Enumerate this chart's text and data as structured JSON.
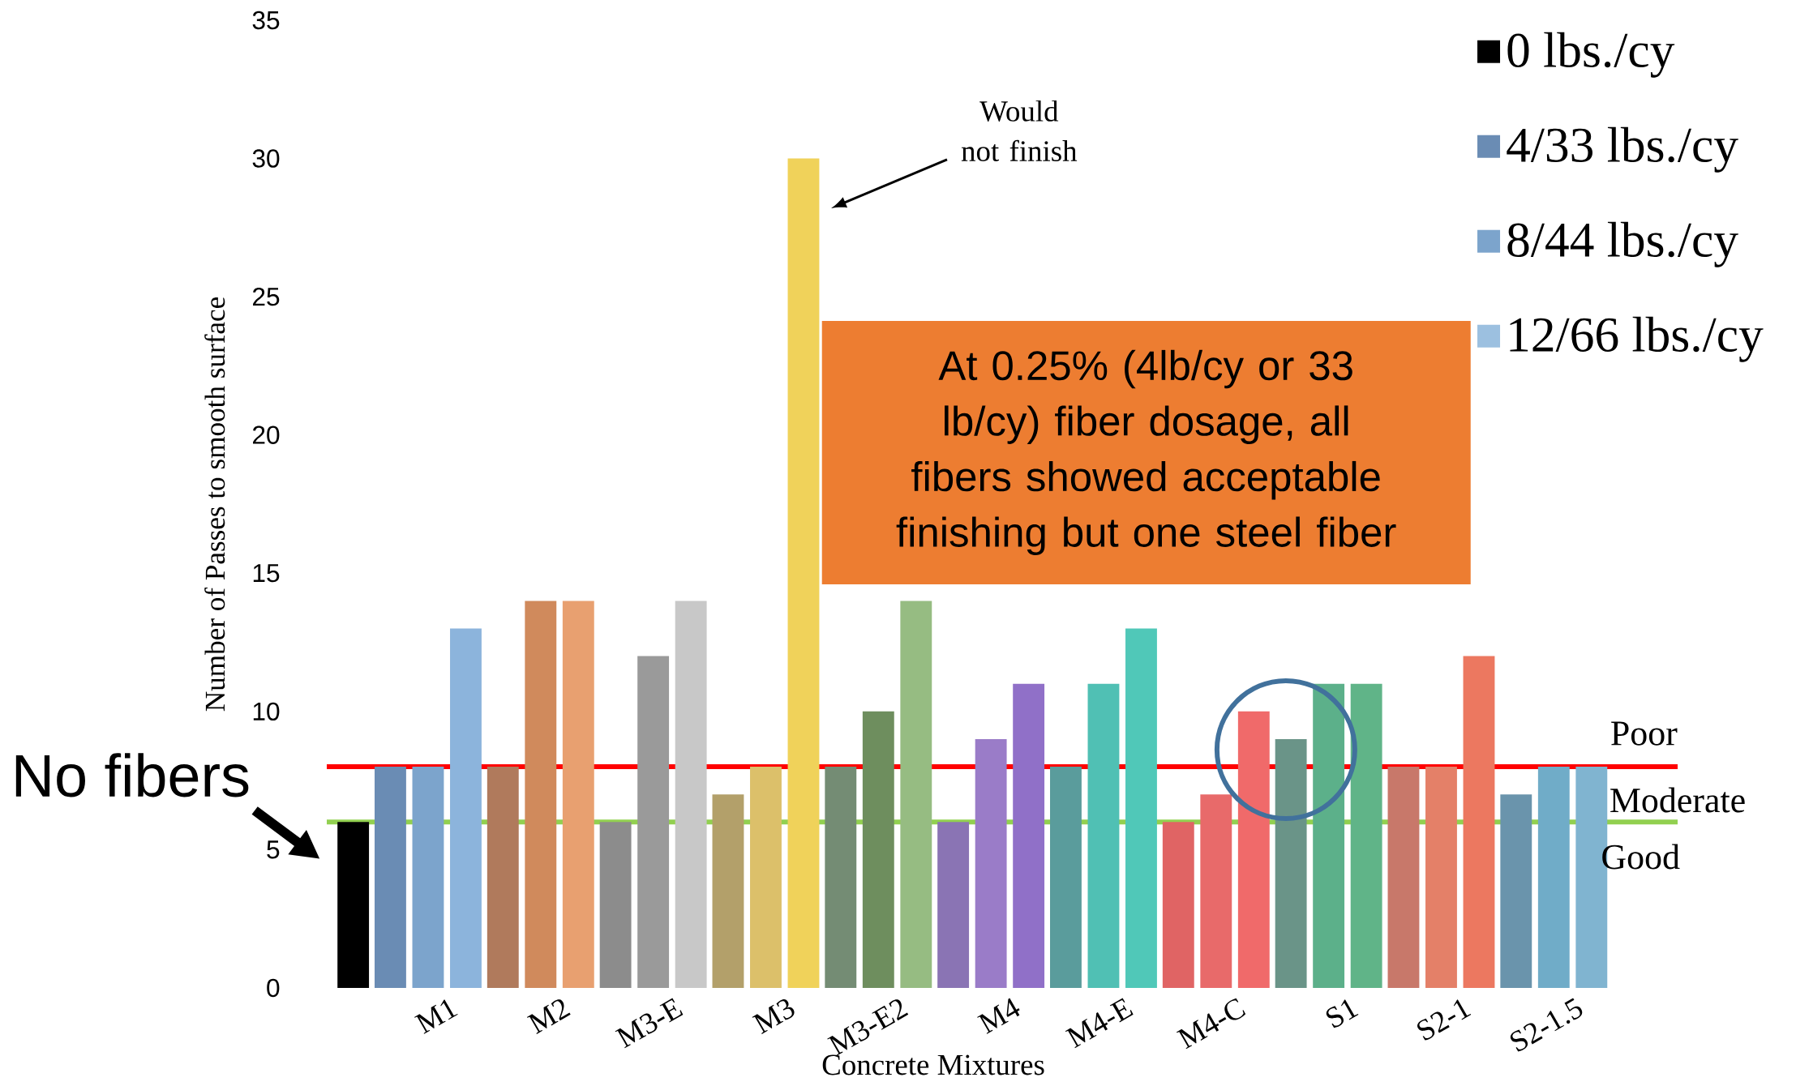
{
  "chart_data": {
    "type": "bar",
    "categories": [
      null,
      "M1",
      "M2",
      "M3-E",
      "M3",
      "M3-E2",
      "M4",
      "M4-E",
      "M4-C",
      "S1",
      "S2-1",
      "S2-1.5"
    ],
    "series": [
      {
        "name": "0 lbs./cy",
        "color": "#000000",
        "colors": [
          "#000000",
          null,
          null,
          null,
          null,
          null,
          null,
          null,
          null,
          null,
          null,
          null
        ],
        "values": [
          6,
          null,
          null,
          null,
          null,
          null,
          null,
          null,
          null,
          null,
          null,
          null
        ]
      },
      {
        "name": "4/33 lbs./cy",
        "color": "#6a8cb4",
        "colors": [
          null,
          "#6a8cb4",
          "#b07a5c",
          "#8c8c8c",
          "#b3a06a",
          "#748c74",
          "#8a74b4",
          "#5a9c9c",
          "#e06464",
          "#6a9488",
          "#c8786a",
          "#6a94ac"
        ],
        "values": [
          null,
          8,
          8,
          6,
          7,
          8,
          6,
          8,
          6,
          9,
          8,
          7
        ]
      },
      {
        "name": "8/44 lbs./cy",
        "color": "#7ca4cc",
        "colors": [
          null,
          "#7ca4cc",
          "#d08a5c",
          "#9a9a9a",
          "#dcc06a",
          "#6e8e5e",
          "#9a7cc8",
          "#50c0b4",
          "#e86a6a",
          "#5cb08a",
          "#e48068",
          "#70acc8"
        ],
        "values": [
          null,
          8,
          14,
          12,
          8,
          10,
          9,
          11,
          7,
          11,
          8,
          8
        ]
      },
      {
        "name": "12/66 lbs./cy",
        "color": "#9cc0e0",
        "colors": [
          null,
          "#8cb4dc",
          "#e8a070",
          "#c8c8c8",
          "#f0d25a",
          "#96bc82",
          "#9070c8",
          "#50c8b8",
          "#f06a6a",
          "#60b488",
          "#ec7860",
          "#80b4d0"
        ],
        "values": [
          null,
          13,
          14,
          14,
          30,
          14,
          11,
          13,
          10,
          11,
          12,
          8
        ]
      }
    ],
    "ylim": [
      0,
      35
    ],
    "yticks": [
      0,
      5,
      10,
      15,
      20,
      25,
      30,
      35
    ],
    "xlabel": "Concrete Mixtures",
    "ylabel": "Number of Passes to smooth surface",
    "legend": "top right",
    "ref_lines": [
      {
        "axis": "y",
        "value": 8,
        "color": "#ff0000"
      },
      {
        "axis": "y",
        "value": 6,
        "color": "#92d050"
      }
    ],
    "annotations": [
      "Would not finish",
      "No fibers",
      "At 0.25% (4lb/cy or 33 lb/cy) fiber dosage, all fibers showed acceptable finishing but one steel fiber",
      "Poor",
      "Moderate",
      "Good"
    ]
  }
}
